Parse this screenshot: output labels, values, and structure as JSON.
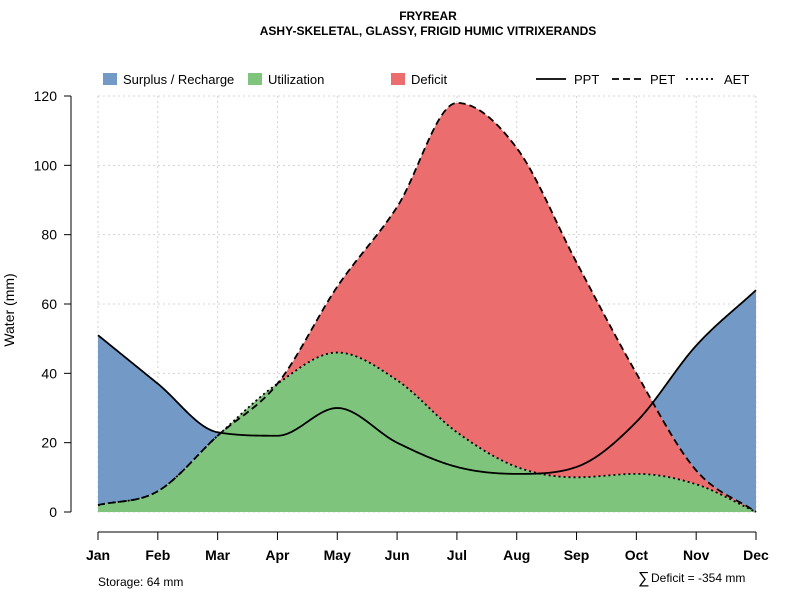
{
  "chart_data": {
    "type": "area",
    "title": "FRYREAR",
    "subtitle": "ASHY-SKELETAL, GLASSY, FRIGID HUMIC VITRIXERANDS",
    "xlabel": "",
    "ylabel": "Water (mm)",
    "ylim": [
      0,
      120
    ],
    "yticks": [
      0,
      20,
      40,
      60,
      80,
      100,
      120
    ],
    "categories": [
      "Jan",
      "Feb",
      "Mar",
      "Apr",
      "May",
      "Jun",
      "Jul",
      "Aug",
      "Sep",
      "Oct",
      "Nov",
      "Dec"
    ],
    "grid": true,
    "legend_position": "top",
    "series": [
      {
        "name": "PPT",
        "style": "solid",
        "values": [
          51,
          37,
          23,
          22,
          30,
          20,
          13,
          11,
          13,
          26,
          48,
          64
        ]
      },
      {
        "name": "PET",
        "style": "dashed",
        "values": [
          2,
          6,
          22,
          37,
          65,
          88,
          118,
          105,
          72,
          40,
          12,
          0
        ]
      },
      {
        "name": "AET",
        "style": "dotted",
        "values": [
          2,
          6,
          22,
          37,
          46,
          38,
          23,
          13,
          10,
          11,
          8,
          0
        ]
      }
    ],
    "fills": [
      {
        "name": "Surplus / Recharge",
        "color": "#7399c7"
      },
      {
        "name": "Utilization",
        "color": "#7fc47d"
      },
      {
        "name": "Deficit",
        "color": "#eb6d6e"
      }
    ],
    "annotations": {
      "storage": "Storage: 64 mm",
      "deficit_symbol": "∑",
      "deficit": "Deficit = -354 mm"
    }
  }
}
